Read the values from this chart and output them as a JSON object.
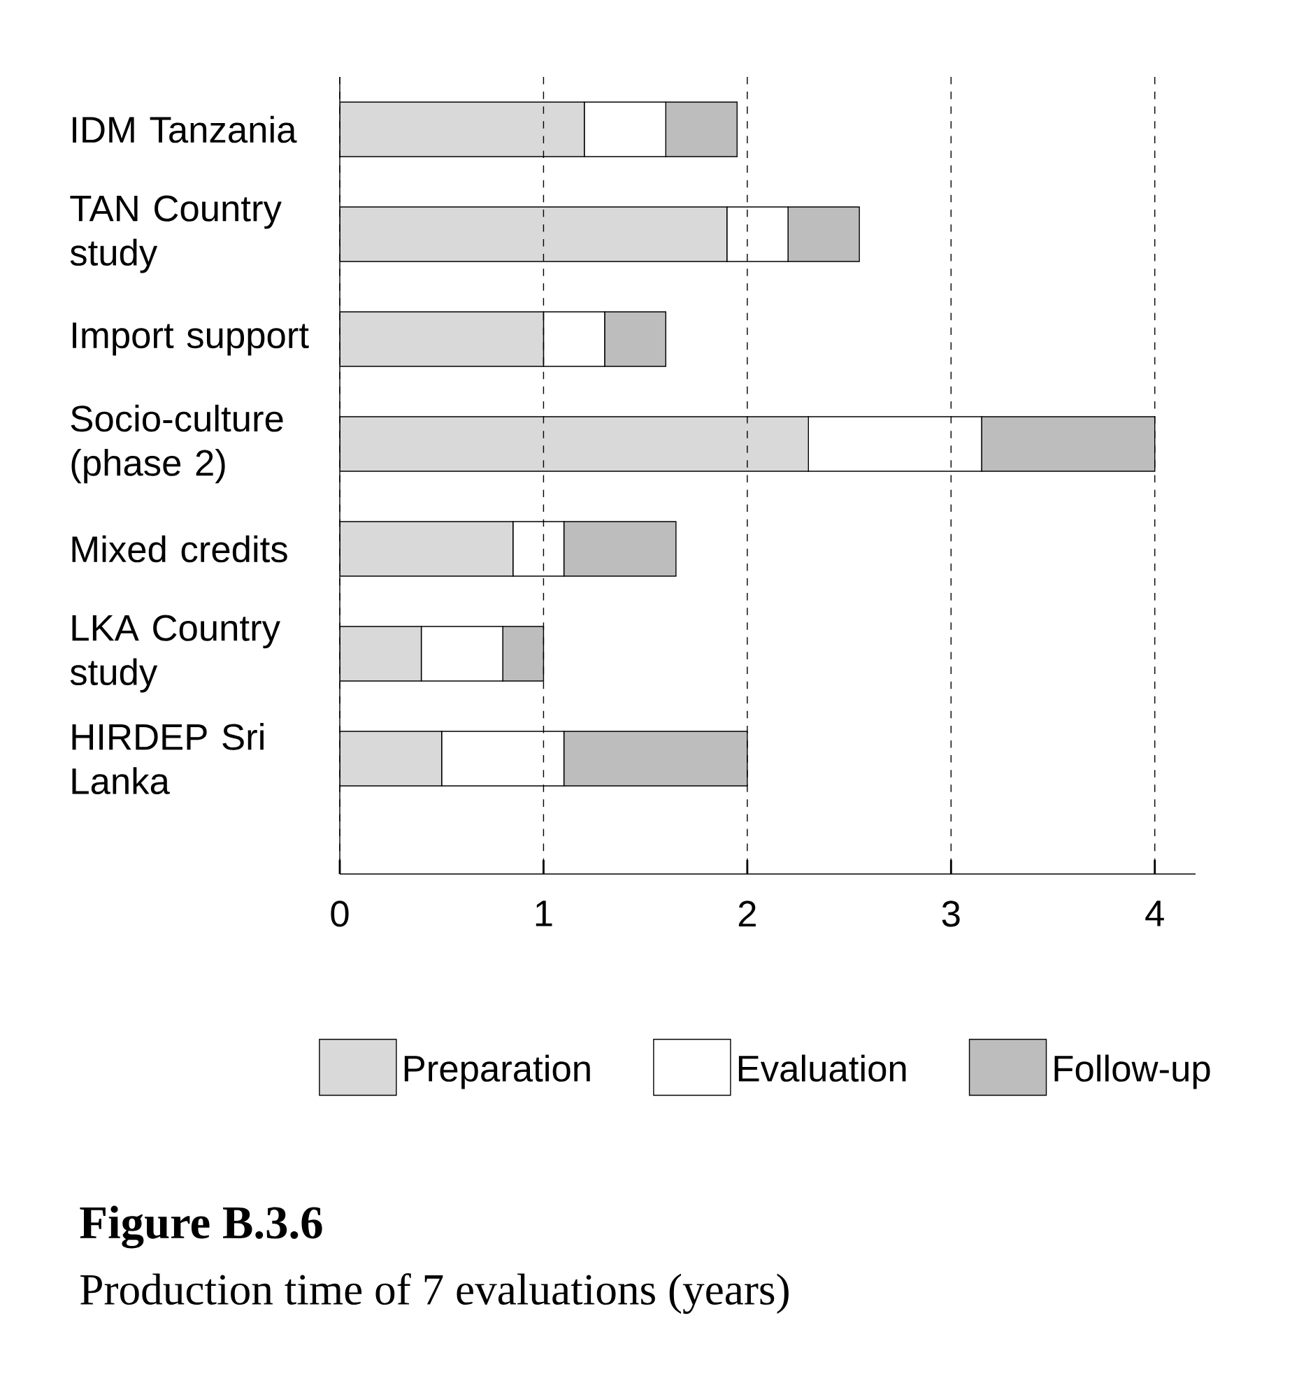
{
  "chart_data": {
    "type": "bar",
    "orientation": "horizontal",
    "stacked": true,
    "title": "Figure B.3.6",
    "subtitle": "Production time of 7 evaluations (years)",
    "categories": [
      "IDM Tanzania",
      "TAN Country study",
      "Import support",
      "Socio-culture (phase 2)",
      "Mixed credits",
      "LKA Country study",
      "HIRDEP Sri Lanka"
    ],
    "series": [
      {
        "name": "Preparation",
        "color": "#d9d9d9",
        "values": [
          1.2,
          1.9,
          1.0,
          2.3,
          0.85,
          0.4,
          0.5
        ]
      },
      {
        "name": "Evaluation",
        "color": "#ffffff",
        "values": [
          0.4,
          0.3,
          0.3,
          0.85,
          0.25,
          0.4,
          0.6
        ]
      },
      {
        "name": "Follow-up",
        "color": "#bdbdbd",
        "values": [
          0.35,
          0.35,
          0.3,
          0.85,
          0.55,
          0.2,
          0.9
        ]
      }
    ],
    "xlim": [
      0,
      4.2
    ],
    "xticks": [
      0,
      1,
      2,
      3,
      4
    ],
    "grid": "x",
    "legend": "bottom"
  }
}
